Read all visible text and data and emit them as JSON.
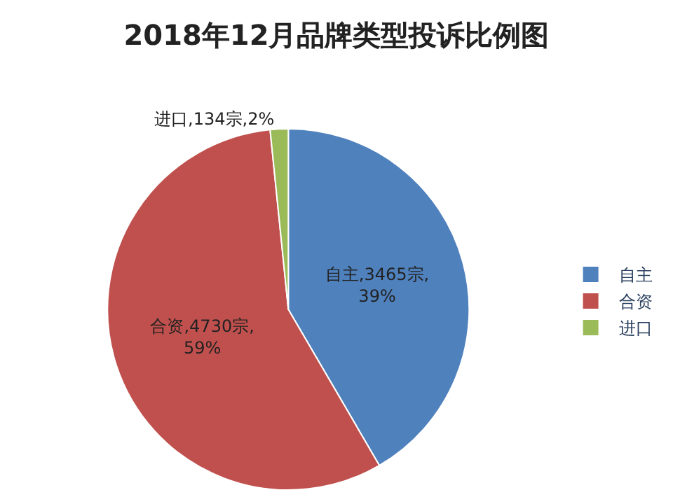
{
  "chart_data": {
    "type": "pie",
    "title": "2018年12月品牌类型投诉比例图",
    "categories": [
      "自主",
      "合资",
      "进口"
    ],
    "values": [
      3465,
      4730,
      134
    ],
    "colors": [
      "#4f81bd",
      "#c0504d",
      "#9bbb59"
    ],
    "value_labels": [
      "自主,3465宗,\n39%",
      "合资,4730宗,\n59%",
      "进口,134宗,2%"
    ],
    "legend": "right"
  }
}
